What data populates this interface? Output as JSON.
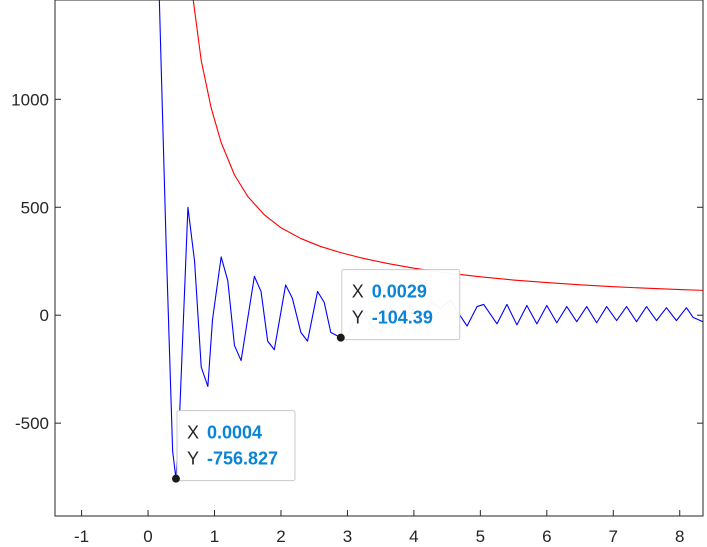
{
  "chart_data": {
    "type": "line",
    "xlim": [
      -1.4,
      8.35
    ],
    "ylim": [
      -930,
      1460
    ],
    "x_ticks": [
      -1,
      0,
      1,
      2,
      3,
      4,
      5,
      6,
      7,
      8
    ],
    "y_ticks": [
      -500,
      0,
      500,
      1000
    ],
    "x_tick_labels": [
      "-1",
      "0",
      "1",
      "2",
      "3",
      "4",
      "5",
      "6",
      "7",
      "8"
    ],
    "y_tick_labels": [
      "-500",
      "0",
      "500",
      "1000"
    ],
    "grid": false,
    "series": [
      {
        "color": "#0000ff",
        "x": [
          0.17,
          0.27,
          0.37,
          0.42,
          0.47,
          0.6,
          0.7,
          0.8,
          0.9,
          0.97,
          1.1,
          1.2,
          1.3,
          1.4,
          1.6,
          1.7,
          1.8,
          1.9,
          2.07,
          2.17,
          2.3,
          2.4,
          2.55,
          2.65,
          2.75,
          2.9,
          3.0,
          3.2,
          3.35,
          3.5,
          3.65,
          3.8,
          3.95,
          4.1,
          4.25,
          4.4,
          4.55,
          4.65,
          4.8,
          4.95,
          5.05,
          5.25,
          5.4,
          5.55,
          5.7,
          5.85,
          6.0,
          6.15,
          6.3,
          6.45,
          6.6,
          6.75,
          6.9,
          7.05,
          7.2,
          7.35,
          7.5,
          7.65,
          7.8,
          7.95,
          8.1,
          8.2,
          8.35
        ],
        "y": [
          1460,
          350,
          -630,
          -757,
          -500,
          500,
          250,
          -240,
          -330,
          -20,
          270,
          160,
          -140,
          -210,
          180,
          110,
          -120,
          -160,
          140,
          80,
          -80,
          -120,
          110,
          60,
          -80,
          -104,
          -90,
          40,
          -50,
          -80,
          40,
          -60,
          50,
          -50,
          60,
          30,
          70,
          20,
          -50,
          40,
          50,
          -40,
          50,
          -45,
          45,
          -40,
          45,
          -35,
          40,
          -30,
          40,
          -35,
          40,
          -25,
          40,
          -30,
          40,
          -25,
          35,
          -25,
          35,
          -10,
          -30
        ],
        "label": ""
      },
      {
        "color": "#ff0000",
        "fn_note": "",
        "x": [
          0.68,
          0.8,
          0.95,
          1.1,
          1.3,
          1.5,
          1.75,
          2.0,
          2.3,
          2.6,
          2.9,
          3.2,
          3.6,
          4.0,
          4.5,
          5.0,
          5.5,
          6.0,
          6.5,
          7.0,
          7.5,
          8.0,
          8.35
        ],
        "y": [
          1460,
          1180,
          960,
          800,
          650,
          550,
          465,
          405,
          355,
          318,
          290,
          266,
          240,
          218,
          196,
          178,
          163,
          151,
          141,
          132,
          125,
          119,
          115
        ],
        "label": ""
      }
    ],
    "annotations": [
      {
        "x_label": "X",
        "y_label": "Y",
        "x_text": "0.0004",
        "y_text": "-756.827",
        "x": 0.42,
        "y": -757
      },
      {
        "x_label": "X",
        "y_label": "Y",
        "x_text": "0.0029",
        "y_text": "-104.39",
        "x": 2.9,
        "y": -104
      }
    ]
  },
  "colors": {
    "value_text": "#0a84d8",
    "axis": "#262626"
  }
}
